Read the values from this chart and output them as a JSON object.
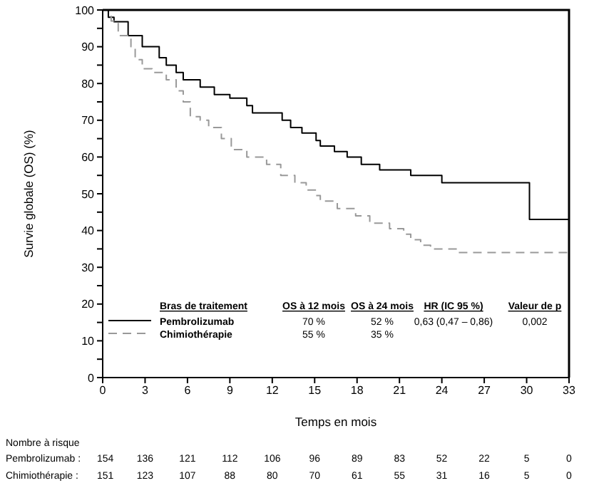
{
  "chart_data": {
    "type": "step",
    "ylabel": "Survie globale (OS) (%)",
    "xlabel": "Temps en mois",
    "xlim": [
      0,
      33
    ],
    "xticks": [
      0,
      3,
      6,
      9,
      12,
      15,
      18,
      21,
      24,
      27,
      30,
      33
    ],
    "ylim": [
      0,
      100
    ],
    "yticks": [
      0,
      {
        "value": 5,
        "label": null
      },
      10,
      {
        "value": 15,
        "label": null
      },
      20,
      {
        "value": 25,
        "label": null
      },
      30,
      {
        "value": 35,
        "label": null
      },
      40,
      {
        "value": 45,
        "label": null
      },
      50,
      {
        "value": 55,
        "label": null
      },
      60,
      {
        "value": 65,
        "label": null
      },
      70,
      {
        "value": 75,
        "label": null
      },
      80,
      {
        "value": 85,
        "label": null
      },
      90,
      {
        "value": 95,
        "label": null
      },
      100
    ],
    "legend": "bottom",
    "marker": "none",
    "series": [
      {
        "name": "Pembrolizumab",
        "color": "#000000",
        "line_style": "solid",
        "x": [
          0,
          0.4,
          0.8,
          1.8,
          2.8,
          4.0,
          4.5,
          5.2,
          5.7,
          6.9,
          7.9,
          9.0,
          10.2,
          10.6,
          12.7,
          13.3,
          14.1,
          15.1,
          15.4,
          16.4,
          17.3,
          18.3,
          19.6,
          21.8,
          24.0,
          30.2,
          33
        ],
        "values": [
          100,
          98,
          96.8,
          93,
          90,
          87,
          85,
          83,
          81,
          79,
          77,
          76,
          74,
          72,
          70,
          68,
          66.5,
          64.5,
          63,
          61.5,
          60,
          58,
          56.5,
          55,
          53,
          43,
          43
        ]
      },
      {
        "name": "Chimiothérapie",
        "color": "#999999",
        "line_style": "dashed",
        "x": [
          0,
          0.6,
          1.1,
          2.0,
          2.3,
          2.8,
          3.5,
          4.5,
          5.2,
          5.7,
          6.2,
          6.9,
          7.5,
          8.4,
          9.1,
          10.2,
          11.6,
          12.6,
          13.6,
          14.4,
          15.1,
          15.4,
          16.6,
          17.9,
          18.9,
          20.3,
          21.3,
          21.8,
          22.5,
          23.2,
          25.2,
          33
        ],
        "values": [
          100,
          97,
          93,
          90,
          86.5,
          84,
          83,
          81,
          78,
          75,
          71,
          70,
          68,
          65,
          62,
          60,
          58,
          55,
          53,
          51,
          49.5,
          48,
          46,
          44,
          42,
          40.5,
          39,
          37.5,
          36,
          35,
          34,
          34
        ]
      }
    ],
    "annotations": [
      "Bras de traitement",
      "OS à 12 mois",
      "OS à 24 mois",
      "HR (IC 95 %)",
      "Valeur de p",
      "70 %",
      "52 %",
      "0,63 (0,47 – 0,86)",
      "0,002",
      "55 %",
      "35 %",
      "Nombre à risque",
      "Pembrolizumab :",
      "154",
      "136",
      "121",
      "112",
      "106",
      "96",
      "89",
      "83",
      "52",
      "22",
      "5",
      "0",
      "Chimiothérapie :",
      "151",
      "123",
      "107",
      "88",
      "80",
      "70",
      "61",
      "55",
      "31",
      "16",
      "5",
      "0"
    ]
  }
}
